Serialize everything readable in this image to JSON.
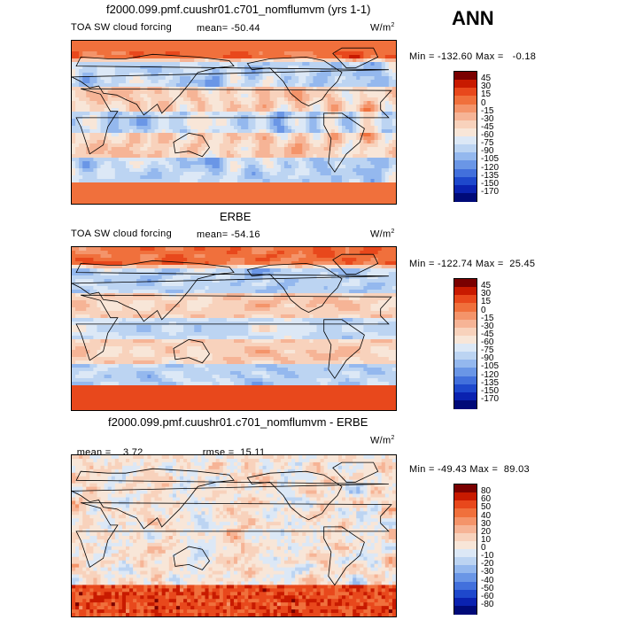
{
  "season": "ANN",
  "unit_base": "W/m",
  "unit_exp": "2",
  "panels": [
    {
      "title": "f2000.099.pmf.cuushr01.c701_nomflumvm (yrs 1-1)",
      "field": "TOA SW cloud forcing",
      "mean_label": "mean=",
      "mean_value": "-50.44",
      "minmax": "Min = -132.60 Max =   -0.18",
      "levels": [
        "45",
        "30",
        "15",
        "0",
        "-15",
        "-30",
        "-45",
        "-60",
        "-75",
        "-90",
        "-105",
        "-120",
        "-135",
        "-150",
        "-170"
      ]
    },
    {
      "title": "ERBE",
      "field": "TOA SW cloud forcing",
      "mean_label": "mean=",
      "mean_value": "-54.16",
      "minmax": "Min = -122.74 Max =  25.45",
      "levels": [
        "45",
        "30",
        "15",
        "0",
        "-15",
        "-30",
        "-45",
        "-60",
        "-75",
        "-90",
        "-105",
        "-120",
        "-135",
        "-150",
        "-170"
      ]
    },
    {
      "title": "f2000.099.pmf.cuushr01.c701_nomflumvm - ERBE",
      "mean_label": "mean =",
      "mean_value": "3.72",
      "rmse_label": "rmse =",
      "rmse_value": "15.11",
      "minmax": "Min = -49.43 Max =  89.03",
      "levels": [
        "80",
        "60",
        "50",
        "40",
        "30",
        "20",
        "10",
        "0",
        "-10",
        "-20",
        "-30",
        "-40",
        "-50",
        "-60",
        "-80"
      ]
    }
  ],
  "chart_data": [
    {
      "type": "heatmap",
      "title": "f2000.099.pmf.cuushr01.c701_nomflumvm (yrs 1-1)",
      "variable": "TOA SW cloud forcing",
      "units": "W/m2",
      "mean": -50.44,
      "min": -132.6,
      "max": -0.18,
      "contour_levels": [
        45,
        30,
        15,
        0,
        -15,
        -30,
        -45,
        -60,
        -75,
        -90,
        -105,
        -120,
        -135,
        -150,
        -170
      ],
      "x": "longitude",
      "y": "latitude"
    },
    {
      "type": "heatmap",
      "title": "ERBE",
      "variable": "TOA SW cloud forcing",
      "units": "W/m2",
      "mean": -54.16,
      "min": -122.74,
      "max": 25.45,
      "contour_levels": [
        45,
        30,
        15,
        0,
        -15,
        -30,
        -45,
        -60,
        -75,
        -90,
        -105,
        -120,
        -135,
        -150,
        -170
      ],
      "x": "longitude",
      "y": "latitude"
    },
    {
      "type": "heatmap",
      "title": "f2000.099.pmf.cuushr01.c701_nomflumvm - ERBE",
      "units": "W/m2",
      "mean": 3.72,
      "rmse": 15.11,
      "min": -49.43,
      "max": 89.03,
      "contour_levels": [
        80,
        60,
        50,
        40,
        30,
        20,
        10,
        0,
        -10,
        -20,
        -30,
        -40,
        -50,
        -60,
        -80
      ],
      "x": "longitude",
      "y": "latitude"
    }
  ],
  "colors": {
    "bar": [
      "#7a0000",
      "#c81a00",
      "#e8481c",
      "#f0703c",
      "#f4946a",
      "#f6b496",
      "#f8d2bc",
      "#f8e6d8",
      "#dce8f6",
      "#bcd4f2",
      "#94b8ee",
      "#6a96e6",
      "#4270dc",
      "#1e48cc",
      "#0a22b0",
      "#000a78"
    ]
  }
}
